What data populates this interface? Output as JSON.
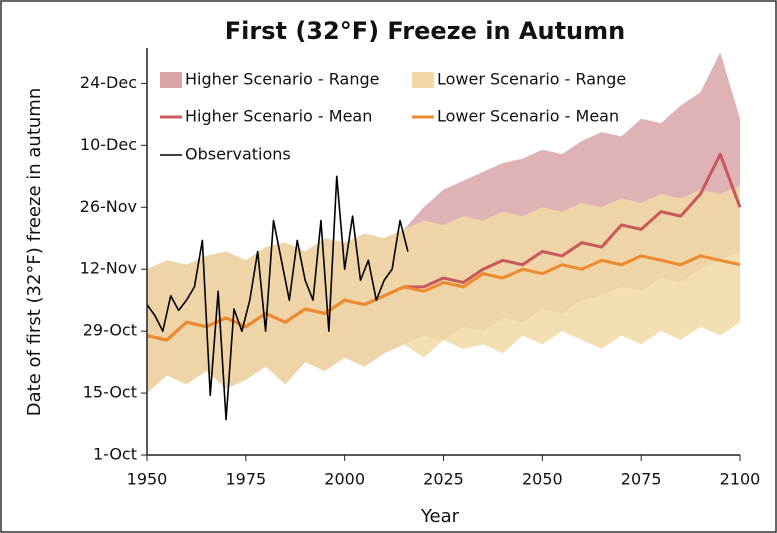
{
  "chart_data": {
    "type": "line",
    "title": "First (32°F) Freeze in Autumn",
    "xlabel": "Year",
    "ylabel": "Date of first (32°F) freeze in autumn",
    "xlim": [
      1950,
      2100
    ],
    "xticks": [
      1950,
      1975,
      2000,
      2025,
      2050,
      2075,
      2100
    ],
    "ylim": [
      274,
      366
    ],
    "yticks": [
      {
        "value": 274,
        "label": "1-Oct"
      },
      {
        "value": 288,
        "label": "15-Oct"
      },
      {
        "value": 302,
        "label": "29-Oct"
      },
      {
        "value": 316,
        "label": "12-Nov"
      },
      {
        "value": 330,
        "label": "26-Nov"
      },
      {
        "value": 344,
        "label": "10-Dec"
      },
      {
        "value": 358,
        "label": "24-Dec"
      }
    ],
    "series": [
      {
        "name": "Higher Scenario - Range",
        "kind": "band",
        "color": "#d9a5a8",
        "x": [
          1950,
          1955,
          1960,
          1965,
          1970,
          1975,
          1980,
          1985,
          1990,
          1995,
          2000,
          2005,
          2010,
          2015,
          2020,
          2025,
          2030,
          2035,
          2040,
          2045,
          2050,
          2055,
          2060,
          2065,
          2070,
          2075,
          2080,
          2085,
          2090,
          2095,
          2100
        ],
        "low": [
          288,
          292,
          290,
          293,
          289,
          291,
          294,
          290,
          295,
          293,
          296,
          294,
          297,
          299,
          301,
          300,
          303,
          302,
          305,
          304,
          307,
          306,
          309,
          310,
          312,
          311,
          314,
          313,
          316,
          318,
          320
        ],
        "high": [
          316,
          318,
          317,
          319,
          320,
          318,
          321,
          322,
          320,
          323,
          322,
          324,
          323,
          325,
          330,
          334,
          336,
          338,
          340,
          341,
          343,
          342,
          345,
          347,
          346,
          350,
          349,
          353,
          356,
          365,
          350
        ]
      },
      {
        "name": "Lower Scenario - Range",
        "kind": "band",
        "color": "#f2d9a6",
        "x": [
          1950,
          1955,
          1960,
          1965,
          1970,
          1975,
          1980,
          1985,
          1990,
          1995,
          2000,
          2005,
          2010,
          2015,
          2020,
          2025,
          2030,
          2035,
          2040,
          2045,
          2050,
          2055,
          2060,
          2065,
          2070,
          2075,
          2080,
          2085,
          2090,
          2095,
          2100
        ],
        "low": [
          288,
          292,
          290,
          293,
          289,
          291,
          294,
          290,
          295,
          293,
          296,
          294,
          297,
          299,
          296,
          300,
          298,
          299,
          297,
          301,
          299,
          302,
          300,
          298,
          301,
          299,
          302,
          300,
          303,
          301,
          304
        ],
        "high": [
          316,
          318,
          317,
          319,
          320,
          318,
          321,
          322,
          320,
          323,
          322,
          324,
          323,
          325,
          327,
          326,
          328,
          327,
          329,
          328,
          330,
          329,
          331,
          330,
          332,
          331,
          333,
          332,
          334,
          333,
          335
        ]
      },
      {
        "name": "Higher Scenario - Mean",
        "kind": "line",
        "color": "#c8585b",
        "width": 3,
        "x": [
          1950,
          1955,
          1960,
          1965,
          1970,
          1975,
          1980,
          1985,
          1990,
          1995,
          2000,
          2005,
          2010,
          2015,
          2020,
          2025,
          2030,
          2035,
          2040,
          2045,
          2050,
          2055,
          2060,
          2065,
          2070,
          2075,
          2080,
          2085,
          2090,
          2095,
          2100
        ],
        "values": [
          301,
          300,
          304,
          303,
          305,
          303,
          306,
          304,
          307,
          306,
          309,
          308,
          310,
          312,
          312,
          314,
          313,
          316,
          318,
          317,
          320,
          319,
          322,
          321,
          326,
          325,
          329,
          328,
          333,
          342,
          330
        ]
      },
      {
        "name": "Lower Scenario - Mean",
        "kind": "line",
        "color": "#ee892e",
        "width": 3,
        "x": [
          1950,
          1955,
          1960,
          1965,
          1970,
          1975,
          1980,
          1985,
          1990,
          1995,
          2000,
          2005,
          2010,
          2015,
          2020,
          2025,
          2030,
          2035,
          2040,
          2045,
          2050,
          2055,
          2060,
          2065,
          2070,
          2075,
          2080,
          2085,
          2090,
          2095,
          2100
        ],
        "values": [
          301,
          300,
          304,
          303,
          305,
          303,
          306,
          304,
          307,
          306,
          309,
          308,
          310,
          312,
          311,
          313,
          312,
          315,
          314,
          316,
          315,
          317,
          316,
          318,
          317,
          319,
          318,
          317,
          319,
          318,
          317
        ]
      },
      {
        "name": "Observations",
        "kind": "line",
        "color": "#000000",
        "width": 1.6,
        "x": [
          1950,
          1952,
          1954,
          1956,
          1958,
          1960,
          1962,
          1964,
          1966,
          1968,
          1970,
          1972,
          1974,
          1976,
          1978,
          1980,
          1982,
          1984,
          1986,
          1988,
          1990,
          1992,
          1994,
          1996,
          1998,
          2000,
          2002,
          2004,
          2006,
          2008,
          2010,
          2012,
          2014,
          2016
        ],
        "values": [
          308,
          305.5,
          302,
          310,
          306.7,
          309,
          312,
          322.5,
          287.5,
          311,
          282,
          307,
          302,
          309,
          320,
          302,
          327,
          318,
          309,
          322.5,
          313.5,
          309,
          327,
          302,
          337,
          316,
          328,
          313.5,
          318,
          309,
          313.5,
          316,
          327,
          320
        ]
      }
    ]
  }
}
